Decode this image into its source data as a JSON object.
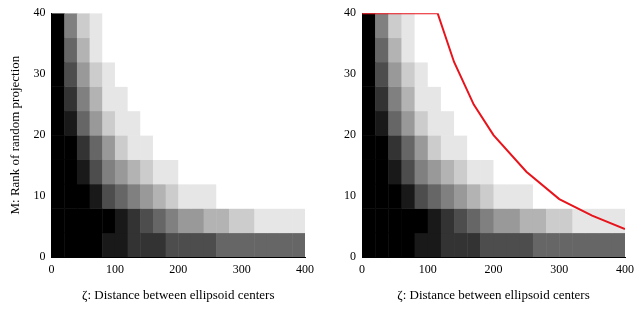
{
  "chart_data": [
    {
      "type": "heatmap",
      "x_label": "ζ: Distance between ellipsoid centers",
      "y_label": "M: Rank of random projection",
      "xlim": [
        0,
        400
      ],
      "ylim": [
        0,
        40
      ],
      "xticks": [
        0,
        100,
        200,
        300,
        400
      ],
      "yticks": [
        0,
        10,
        20,
        30,
        40
      ],
      "grid": false,
      "x_bins": [
        0,
        20,
        40,
        60,
        80,
        100,
        120,
        140,
        160,
        180,
        200,
        220,
        240,
        260,
        280,
        300,
        320,
        340,
        360,
        380,
        400
      ],
      "y_bins": [
        0,
        4,
        8,
        12,
        16,
        20,
        24,
        28,
        32,
        36,
        40
      ],
      "z": [
        [
          1,
          1,
          1,
          1,
          0.9,
          0.9,
          0.8,
          0.8,
          0.8,
          0.7,
          0.7,
          0.7,
          0.7,
          0.6,
          0.6,
          0.6,
          0.6,
          0.6,
          0.6,
          0.6
        ],
        [
          1,
          1,
          1,
          1,
          1,
          0.9,
          0.8,
          0.7,
          0.6,
          0.5,
          0.4,
          0.4,
          0.3,
          0.3,
          0.2,
          0.2,
          0.1,
          0.1,
          0.1,
          0.1
        ],
        [
          1,
          1,
          1,
          0.9,
          0.7,
          0.6,
          0.5,
          0.4,
          0.3,
          0.2,
          0.1,
          0.1,
          0.1,
          0,
          0,
          0,
          0,
          0,
          0,
          0
        ],
        [
          1,
          1,
          0.9,
          0.7,
          0.5,
          0.4,
          0.3,
          0.2,
          0.1,
          0.1,
          0,
          0,
          0,
          0,
          0,
          0,
          0,
          0,
          0,
          0
        ],
        [
          1,
          1,
          0.8,
          0.6,
          0.4,
          0.2,
          0.1,
          0.1,
          0,
          0,
          0,
          0,
          0,
          0,
          0,
          0,
          0,
          0,
          0,
          0
        ],
        [
          1,
          0.9,
          0.6,
          0.4,
          0.2,
          0.1,
          0.1,
          0,
          0,
          0,
          0,
          0,
          0,
          0,
          0,
          0,
          0,
          0,
          0,
          0
        ],
        [
          1,
          0.8,
          0.5,
          0.3,
          0.1,
          0.1,
          0,
          0,
          0,
          0,
          0,
          0,
          0,
          0,
          0,
          0,
          0,
          0,
          0,
          0
        ],
        [
          1,
          0.7,
          0.4,
          0.2,
          0.1,
          0,
          0,
          0,
          0,
          0,
          0,
          0,
          0,
          0,
          0,
          0,
          0,
          0,
          0,
          0
        ],
        [
          1,
          0.6,
          0.3,
          0.1,
          0,
          0,
          0,
          0,
          0,
          0,
          0,
          0,
          0,
          0,
          0,
          0,
          0,
          0,
          0,
          0
        ],
        [
          1,
          0.5,
          0.2,
          0.1,
          0,
          0,
          0,
          0,
          0,
          0,
          0,
          0,
          0,
          0,
          0,
          0,
          0,
          0,
          0,
          0
        ]
      ]
    },
    {
      "type": "heatmap",
      "x_label": "ζ: Distance between ellipsoid centers",
      "xlim": [
        0,
        400
      ],
      "ylim": [
        0,
        40
      ],
      "xticks": [
        0,
        100,
        200,
        300,
        400
      ],
      "yticks": [
        0,
        10,
        20,
        30,
        40
      ],
      "grid": false,
      "x_bins": [
        0,
        20,
        40,
        60,
        80,
        100,
        120,
        140,
        160,
        180,
        200,
        220,
        240,
        260,
        280,
        300,
        320,
        340,
        360,
        380,
        400
      ],
      "y_bins": [
        0,
        4,
        8,
        12,
        16,
        20,
        24,
        28,
        32,
        36,
        40
      ],
      "z": [
        [
          1,
          1,
          1,
          1,
          0.9,
          0.9,
          0.8,
          0.8,
          0.8,
          0.7,
          0.7,
          0.7,
          0.7,
          0.6,
          0.6,
          0.6,
          0.6,
          0.6,
          0.6,
          0.6
        ],
        [
          1,
          1,
          1,
          1,
          1,
          0.9,
          0.8,
          0.7,
          0.6,
          0.5,
          0.4,
          0.4,
          0.3,
          0.3,
          0.2,
          0.2,
          0.1,
          0.1,
          0.1,
          0.1
        ],
        [
          1,
          1,
          1,
          0.9,
          0.7,
          0.6,
          0.5,
          0.4,
          0.3,
          0.2,
          0.1,
          0.1,
          0.1,
          0,
          0,
          0,
          0,
          0,
          0,
          0
        ],
        [
          1,
          1,
          0.9,
          0.7,
          0.5,
          0.4,
          0.3,
          0.2,
          0.1,
          0.1,
          0,
          0,
          0,
          0,
          0,
          0,
          0,
          0,
          0,
          0
        ],
        [
          1,
          1,
          0.8,
          0.6,
          0.4,
          0.2,
          0.1,
          0.1,
          0,
          0,
          0,
          0,
          0,
          0,
          0,
          0,
          0,
          0,
          0,
          0
        ],
        [
          1,
          0.9,
          0.6,
          0.4,
          0.2,
          0.1,
          0.1,
          0,
          0,
          0,
          0,
          0,
          0,
          0,
          0,
          0,
          0,
          0,
          0,
          0
        ],
        [
          1,
          0.8,
          0.5,
          0.3,
          0.1,
          0.1,
          0,
          0,
          0,
          0,
          0,
          0,
          0,
          0,
          0,
          0,
          0,
          0,
          0,
          0
        ],
        [
          1,
          0.7,
          0.4,
          0.2,
          0.1,
          0,
          0,
          0,
          0,
          0,
          0,
          0,
          0,
          0,
          0,
          0,
          0,
          0,
          0,
          0
        ],
        [
          1,
          0.6,
          0.3,
          0.1,
          0,
          0,
          0,
          0,
          0,
          0,
          0,
          0,
          0,
          0,
          0,
          0,
          0,
          0,
          0,
          0
        ],
        [
          1,
          0.5,
          0.2,
          0.1,
          0,
          0,
          0,
          0,
          0,
          0,
          0,
          0,
          0,
          0,
          0,
          0,
          0,
          0,
          0,
          0
        ]
      ],
      "series": [
        {
          "type": "line",
          "color": "#e8141c",
          "x": [
            0,
            115,
            140,
            170,
            200,
            250,
            300,
            350,
            400
          ],
          "values": [
            40,
            40,
            32,
            25,
            20,
            14,
            9.5,
            6.8,
            4.6
          ]
        }
      ]
    }
  ]
}
